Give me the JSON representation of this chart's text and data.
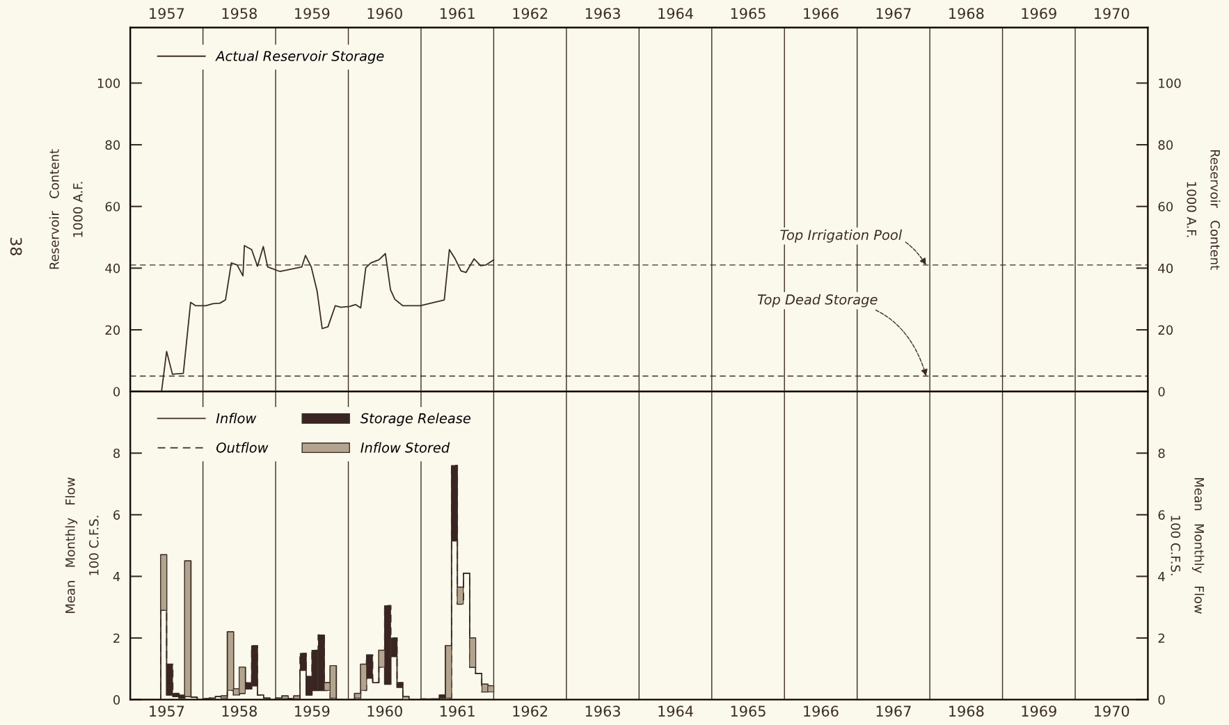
{
  "chart_data": [
    {
      "type": "line",
      "ylabel": "Reservoir   Content\n1000 A.F.",
      "y2label": "Reservoir   Content\n1000 A.F.",
      "xlim": [
        1957,
        1971
      ],
      "ylim": [
        0,
        118
      ],
      "yticks": [
        0,
        20,
        40,
        60,
        80,
        100
      ],
      "y2lim": [
        0,
        118
      ],
      "y2ticks": [
        0,
        20,
        40,
        60,
        80,
        100
      ],
      "x2lim": [
        1957,
        1971
      ],
      "x2ticks": [
        {
          "value": 1957.5,
          "label": "1957"
        },
        {
          "value": 1958.5,
          "label": "1958"
        },
        {
          "value": 1959.5,
          "label": "1959"
        },
        {
          "value": 1960.5,
          "label": "1960"
        },
        {
          "value": 1961.5,
          "label": "1961"
        },
        {
          "value": 1962.5,
          "label": "1962"
        },
        {
          "value": 1963.5,
          "label": "1963"
        },
        {
          "value": 1964.5,
          "label": "1964"
        },
        {
          "value": 1965.5,
          "label": "1965"
        },
        {
          "value": 1966.5,
          "label": "1966"
        },
        {
          "value": 1967.5,
          "label": "1967"
        },
        {
          "value": 1968.5,
          "label": "1968"
        },
        {
          "value": 1969.5,
          "label": "1969"
        },
        {
          "value": 1970.5,
          "label": "1970"
        }
      ],
      "legend": "top left",
      "grid": false,
      "series": [
        {
          "name": "Actual Reservoir Storage",
          "color": "#3a2c24",
          "x": [
            1957.43,
            1957.5,
            1957.58,
            1957.73,
            1957.83,
            1957.9,
            1958.04,
            1958.14,
            1958.23,
            1958.31,
            1958.39,
            1958.47,
            1958.55,
            1958.57,
            1958.67,
            1958.75,
            1958.83,
            1958.89,
            1959.06,
            1959.36,
            1959.41,
            1959.49,
            1959.57,
            1959.64,
            1959.72,
            1959.82,
            1959.9,
            1960.02,
            1960.1,
            1960.17,
            1960.24,
            1960.31,
            1960.42,
            1960.51,
            1960.58,
            1960.64,
            1960.75,
            1960.99,
            1961.32,
            1961.39,
            1961.47,
            1961.55,
            1961.62,
            1961.73,
            1961.82,
            1961.89,
            1962.0
          ],
          "values": [
            0,
            13,
            5.6,
            5.9,
            28.9,
            27.8,
            27.8,
            28.5,
            28.6,
            29.7,
            41.7,
            41.0,
            37.5,
            47.3,
            46.0,
            40.6,
            47.0,
            40.4,
            38.9,
            40.4,
            44.1,
            40.4,
            32.6,
            20.4,
            21.0,
            27.8,
            27.3,
            27.6,
            28.2,
            27.1,
            40.1,
            41.7,
            42.7,
            44.7,
            33.0,
            29.9,
            27.8,
            27.8,
            29.7,
            46.0,
            43.0,
            39.1,
            38.6,
            43.0,
            40.8,
            41.0,
            42.7
          ]
        }
      ],
      "ref_lines": [
        {
          "axis": "y",
          "value": 41,
          "label": null,
          "color": "#3a2c24",
          "line_style": "dashed"
        },
        {
          "axis": "y",
          "value": 5,
          "label": null,
          "color": "#3a2c24",
          "line_style": "dashed"
        },
        {
          "axis": "x",
          "value": 1958,
          "color": "#3a2c24"
        },
        {
          "axis": "x",
          "value": 1959,
          "color": "#3a2c24"
        },
        {
          "axis": "x",
          "value": 1960,
          "color": "#3a2c24"
        },
        {
          "axis": "x",
          "value": 1961,
          "color": "#3a2c24"
        },
        {
          "axis": "x",
          "value": 1962,
          "color": "#3a2c24"
        },
        {
          "axis": "x",
          "value": 1963,
          "color": "#3a2c24"
        },
        {
          "axis": "x",
          "value": 1964,
          "color": "#3a2c24"
        },
        {
          "axis": "x",
          "value": 1965,
          "color": "#3a2c24"
        },
        {
          "axis": "x",
          "value": 1966,
          "color": "#3a2c24"
        },
        {
          "axis": "x",
          "value": 1967,
          "color": "#3a2c24"
        },
        {
          "axis": "x",
          "value": 1968,
          "color": "#3a2c24"
        },
        {
          "axis": "x",
          "value": 1969,
          "color": "#3a2c24"
        },
        {
          "axis": "x",
          "value": 1970,
          "color": "#3a2c24"
        }
      ],
      "annotations": [
        {
          "text": "Top Irrigation Pool",
          "x": 1967.95,
          "y": 41
        },
        {
          "text": "Top Dead Storage",
          "x": 1967.95,
          "y": 5
        },
        "38"
      ]
    },
    {
      "type": "bar",
      "ylabel": "Mean   Monthly   Flow\n100 C.F.S.",
      "y2label": "Mean   Monthly   Flow\n100 C.F.S.",
      "xlim": [
        1957,
        1971
      ],
      "ylim": [
        0,
        10
      ],
      "yticks": [
        0,
        2,
        4,
        6,
        8
      ],
      "y2lim": [
        0,
        10
      ],
      "y2ticks": [
        0,
        2,
        4,
        6,
        8
      ],
      "xticks": [
        {
          "value": 1957.5,
          "label": "1957"
        },
        {
          "value": 1958.5,
          "label": "1958"
        },
        {
          "value": 1959.5,
          "label": "1959"
        },
        {
          "value": 1960.5,
          "label": "1960"
        },
        {
          "value": 1961.5,
          "label": "1961"
        },
        {
          "value": 1962.5,
          "label": "1962"
        },
        {
          "value": 1963.5,
          "label": "1963"
        },
        {
          "value": 1964.5,
          "label": "1964"
        },
        {
          "value": 1965.5,
          "label": "1965"
        },
        {
          "value": 1966.5,
          "label": "1966"
        },
        {
          "value": 1967.5,
          "label": "1967"
        },
        {
          "value": 1968.5,
          "label": "1968"
        },
        {
          "value": 1969.5,
          "label": "1969"
        },
        {
          "value": 1970.5,
          "label": "1970"
        }
      ],
      "legend": "top left",
      "grid": false,
      "x": [
        1957.04,
        1957.13,
        1957.21,
        1957.29,
        1957.38,
        1957.46,
        1957.54,
        1957.63,
        1957.71,
        1957.79,
        1957.88,
        1957.96,
        1958.04,
        1958.13,
        1958.21,
        1958.29,
        1958.38,
        1958.46,
        1958.54,
        1958.63,
        1958.71,
        1958.79,
        1958.88,
        1958.96,
        1959.04,
        1959.13,
        1959.21,
        1959.29,
        1959.38,
        1959.46,
        1959.54,
        1959.63,
        1959.71,
        1959.79,
        1959.88,
        1959.96,
        1960.04,
        1960.13,
        1960.21,
        1960.29,
        1960.38,
        1960.46,
        1960.54,
        1960.63,
        1960.71,
        1960.79,
        1960.88,
        1960.96,
        1961.04,
        1961.13,
        1961.21,
        1961.29,
        1961.38,
        1961.46,
        1961.54,
        1961.63,
        1961.71,
        1961.79,
        1961.88,
        1961.96
      ],
      "series": [
        {
          "name": "Inflow",
          "type": "step",
          "color": "#3a2c24",
          "line_style": "solid",
          "values": [
            0,
            0,
            0,
            0,
            0,
            4.7,
            0.15,
            0.1,
            0.05,
            4.5,
            0.08,
            0,
            0.03,
            0.05,
            0.1,
            0.12,
            2.2,
            0.35,
            1.05,
            0.35,
            0.45,
            0.15,
            0.05,
            0,
            0.05,
            0.12,
            0.03,
            0.12,
            0.95,
            0.15,
            0.3,
            0.3,
            0.55,
            1.1,
            0,
            0,
            0,
            0.2,
            1.15,
            0.7,
            0.55,
            1.6,
            0.5,
            1.4,
            0.4,
            0.1,
            0,
            0,
            0.02,
            0.02,
            0.02,
            0.05,
            1.75,
            5.15,
            3.65,
            4.1,
            2.0,
            0.85,
            0.5,
            0.45
          ]
        },
        {
          "name": "Outflow",
          "type": "step",
          "color": "#3a2c24",
          "line_style": "dashed",
          "values": [
            0,
            0,
            0,
            0,
            0,
            2.9,
            1.15,
            0.2,
            0.15,
            0.1,
            0.08,
            0,
            0.03,
            0.05,
            0.1,
            0.05,
            0.3,
            0.15,
            0.2,
            0.55,
            1.75,
            0.15,
            0.05,
            0,
            0.05,
            0.03,
            0.03,
            0.03,
            1.5,
            0.75,
            1.6,
            2.1,
            0.3,
            0.05,
            0,
            0,
            0,
            0.05,
            0.3,
            1.45,
            0.55,
            1.05,
            3.05,
            2.0,
            0.55,
            0,
            0,
            0,
            0.02,
            0.02,
            0.02,
            0.15,
            0.05,
            7.6,
            3.1,
            4.1,
            1.05,
            0.85,
            0.25,
            0.25
          ]
        },
        {
          "name": "Storage Release",
          "type": "bar",
          "color": "#3a2522",
          "x": [
            1957.54,
            1957.63,
            1957.71,
            1958.63,
            1958.71,
            1959.38,
            1959.46,
            1959.54,
            1959.63,
            1960.29,
            1960.54,
            1960.63,
            1960.71,
            1961.29,
            1961.46
          ],
          "base": [
            0.15,
            0.1,
            0.05,
            0.35,
            0.45,
            0.95,
            0.15,
            0.3,
            0.3,
            0.7,
            0.5,
            1.4,
            0.4,
            0.05,
            5.15
          ],
          "values": [
            1.0,
            0.1,
            0.1,
            0.2,
            1.3,
            0.55,
            0.6,
            1.3,
            1.8,
            0.75,
            2.55,
            0.6,
            0.15,
            0.1,
            2.45
          ]
        },
        {
          "name": "Inflow Stored",
          "type": "bar",
          "color": "#b3a48f",
          "x": [
            1957.46,
            1957.79,
            1958.29,
            1958.38,
            1958.46,
            1958.54,
            1959.13,
            1959.29,
            1959.71,
            1959.79,
            1960.13,
            1960.21,
            1960.46,
            1960.79,
            1961.38,
            1961.54,
            1961.71,
            1961.88,
            1961.96
          ],
          "base": [
            2.9,
            0.1,
            0.05,
            0.3,
            0.15,
            0.2,
            0.03,
            0.03,
            0.3,
            0.05,
            0.05,
            0.3,
            1.05,
            0,
            0.05,
            3.1,
            1.05,
            0.25,
            0.25
          ],
          "values": [
            1.8,
            4.4,
            0.07,
            1.9,
            0.2,
            0.85,
            0.09,
            0.09,
            0.25,
            1.05,
            0.15,
            0.85,
            0.55,
            0.1,
            1.7,
            0.55,
            0.95,
            0.25,
            0.2
          ]
        }
      ],
      "ref_lines": [
        {
          "axis": "x",
          "value": 1958,
          "color": "#3a2c24"
        },
        {
          "axis": "x",
          "value": 1959,
          "color": "#3a2c24"
        },
        {
          "axis": "x",
          "value": 1960,
          "color": "#3a2c24"
        },
        {
          "axis": "x",
          "value": 1961,
          "color": "#3a2c24"
        },
        {
          "axis": "x",
          "value": 1962,
          "color": "#3a2c24"
        },
        {
          "axis": "x",
          "value": 1963,
          "color": "#3a2c24"
        },
        {
          "axis": "x",
          "value": 1964,
          "color": "#3a2c24"
        },
        {
          "axis": "x",
          "value": 1965,
          "color": "#3a2c24"
        },
        {
          "axis": "x",
          "value": 1966,
          "color": "#3a2c24"
        },
        {
          "axis": "x",
          "value": 1967,
          "color": "#3a2c24"
        },
        {
          "axis": "x",
          "value": 1968,
          "color": "#3a2c24"
        },
        {
          "axis": "x",
          "value": 1969,
          "color": "#3a2c24"
        },
        {
          "axis": "x",
          "value": 1970,
          "color": "#3a2c24"
        }
      ]
    }
  ]
}
